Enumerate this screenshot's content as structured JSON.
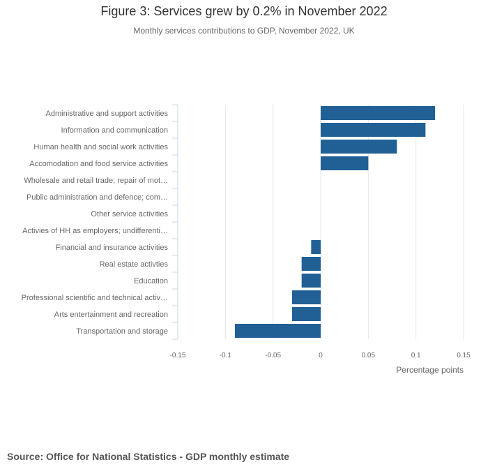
{
  "title": "Figure 3: Services grew by 0.2% in November 2022",
  "subtitle": "Monthly services contributions to GDP, November 2022, UK",
  "source": "Source: Office for National Statistics - GDP monthly estimate",
  "colors": {
    "bar": "#206095",
    "grid": "#e6e6e6",
    "axis": "#ccd6eb"
  },
  "chart_data": {
    "type": "bar",
    "orientation": "horizontal",
    "title": "Figure 3: Services grew by 0.2% in November 2022",
    "subtitle": "Monthly services contributions to GDP, November 2022, UK",
    "xlabel": "Percentage points",
    "ylabel": "",
    "xlim": [
      -0.15,
      0.15
    ],
    "ticks": [
      -0.15,
      -0.1,
      -0.05,
      0,
      0.05,
      0.1,
      0.15
    ],
    "tick_labels": [
      "-0.15",
      "-0.1",
      "-0.05",
      "0",
      "0.05",
      "0.1",
      "0.15"
    ],
    "grid": true,
    "categories": [
      "Administrative and support activities",
      "Information and communication",
      "Human health and social work activities",
      "Accomodation and food service activities",
      "Wholesale and retail trade; repair of mot…",
      "Public administration and defence; com…",
      "Other service activities",
      "Activies of HH as employers; undifferenti…",
      "Financial and insurance activities",
      "Real estate activties",
      "Education",
      "Professional scientific and technical activ…",
      "Arts entertainment and recreation",
      "Transportation and storage"
    ],
    "values": [
      0.12,
      0.11,
      0.08,
      0.05,
      0,
      0,
      0,
      0,
      -0.01,
      -0.02,
      -0.02,
      -0.03,
      -0.03,
      -0.09
    ]
  }
}
